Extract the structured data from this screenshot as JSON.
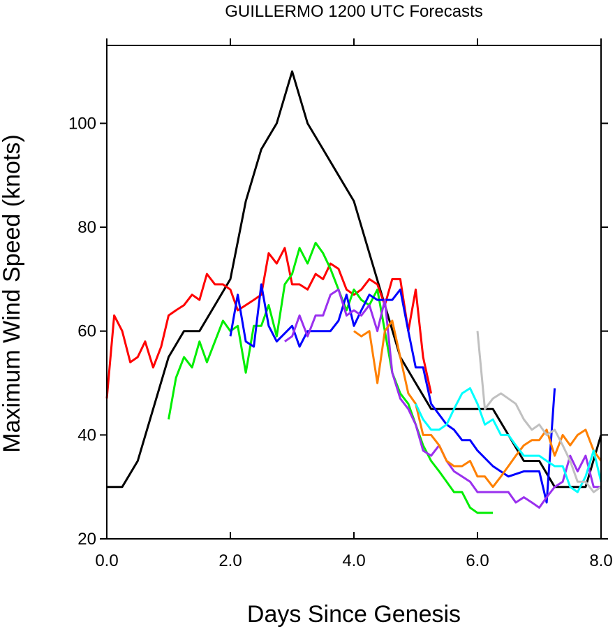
{
  "chart_data": {
    "type": "line",
    "title": "GUILLERMO 1200 UTC Forecasts",
    "xlabel": "Days Since Genesis",
    "ylabel": "Maximum Wind Speed (knots)",
    "xlim": [
      0,
      8
    ],
    "ylim": [
      20,
      115
    ],
    "x_ticks": [
      0,
      2,
      4,
      6,
      8
    ],
    "x_tick_labels": [
      "0.0",
      "2.0",
      "4.0",
      "6.0",
      "8.0"
    ],
    "y_ticks": [
      20,
      40,
      60,
      80,
      100
    ],
    "y_tick_labels": [
      "20",
      "40",
      "60",
      "80",
      "100"
    ],
    "grid": false,
    "series": [
      {
        "color": "#000000",
        "points": [
          [
            0,
            30
          ],
          [
            0.25,
            30
          ],
          [
            0.5,
            35
          ],
          [
            0.75,
            45
          ],
          [
            1.0,
            55
          ],
          [
            1.25,
            60
          ],
          [
            1.5,
            60
          ],
          [
            1.75,
            65
          ],
          [
            2.0,
            70
          ],
          [
            2.25,
            85
          ],
          [
            2.5,
            95
          ],
          [
            2.75,
            100
          ],
          [
            3.0,
            110
          ],
          [
            3.25,
            100
          ],
          [
            3.5,
            95
          ],
          [
            3.75,
            90
          ],
          [
            4.0,
            85
          ],
          [
            4.25,
            75
          ],
          [
            4.5,
            65
          ],
          [
            4.75,
            55
          ],
          [
            5.0,
            50
          ],
          [
            5.25,
            45
          ],
          [
            5.5,
            45
          ],
          [
            5.75,
            45
          ],
          [
            6.0,
            45
          ],
          [
            6.25,
            45
          ],
          [
            6.5,
            40
          ],
          [
            6.75,
            35
          ],
          [
            7.0,
            35
          ],
          [
            7.25,
            30
          ],
          [
            7.5,
            30
          ],
          [
            7.75,
            30
          ],
          [
            8.0,
            40
          ]
        ]
      },
      {
        "color": "#ff0000",
        "points": [
          [
            0,
            47
          ],
          [
            0.12,
            63
          ],
          [
            0.25,
            60
          ],
          [
            0.38,
            54
          ],
          [
            0.5,
            55
          ],
          [
            0.62,
            58
          ],
          [
            0.75,
            53
          ],
          [
            0.88,
            57
          ],
          [
            1.0,
            63
          ],
          [
            1.12,
            64
          ],
          [
            1.25,
            65
          ],
          [
            1.38,
            67
          ],
          [
            1.5,
            66
          ],
          [
            1.62,
            71
          ],
          [
            1.75,
            69
          ],
          [
            1.88,
            69
          ],
          [
            2.0,
            68
          ],
          [
            2.12,
            64
          ],
          [
            2.25,
            65
          ],
          [
            2.38,
            66
          ],
          [
            2.5,
            67
          ],
          [
            2.62,
            75
          ],
          [
            2.75,
            73
          ],
          [
            2.88,
            76
          ],
          [
            3.0,
            69
          ],
          [
            3.12,
            69
          ],
          [
            3.25,
            68
          ],
          [
            3.38,
            71
          ],
          [
            3.5,
            70
          ],
          [
            3.62,
            73
          ],
          [
            3.75,
            72
          ],
          [
            3.88,
            68
          ],
          [
            4.0,
            67
          ],
          [
            4.12,
            68
          ],
          [
            4.25,
            70
          ],
          [
            4.38,
            69
          ],
          [
            4.5,
            65
          ],
          [
            4.62,
            70
          ],
          [
            4.75,
            70
          ],
          [
            4.88,
            60
          ],
          [
            5.0,
            68
          ],
          [
            5.12,
            55
          ],
          [
            5.25,
            48
          ]
        ]
      },
      {
        "color": "#00ee00",
        "points": [
          [
            1.0,
            43
          ],
          [
            1.12,
            51
          ],
          [
            1.25,
            55
          ],
          [
            1.38,
            53
          ],
          [
            1.5,
            58
          ],
          [
            1.62,
            54
          ],
          [
            1.75,
            58
          ],
          [
            1.88,
            62
          ],
          [
            2.0,
            60
          ],
          [
            2.12,
            61
          ],
          [
            2.25,
            52
          ],
          [
            2.38,
            61
          ],
          [
            2.5,
            61
          ],
          [
            2.62,
            65
          ],
          [
            2.75,
            59
          ],
          [
            2.88,
            69
          ],
          [
            3.0,
            71
          ],
          [
            3.12,
            76
          ],
          [
            3.25,
            73
          ],
          [
            3.38,
            77
          ],
          [
            3.5,
            75
          ],
          [
            3.62,
            72
          ],
          [
            3.75,
            68
          ],
          [
            3.88,
            64
          ],
          [
            4.0,
            68
          ],
          [
            4.12,
            66
          ],
          [
            4.25,
            65
          ],
          [
            4.38,
            68
          ],
          [
            4.5,
            60
          ],
          [
            4.62,
            52
          ],
          [
            4.75,
            48
          ],
          [
            4.88,
            46
          ],
          [
            5.0,
            42
          ],
          [
            5.12,
            38
          ],
          [
            5.25,
            35
          ],
          [
            5.38,
            33
          ],
          [
            5.5,
            31
          ],
          [
            5.62,
            29
          ],
          [
            5.75,
            29
          ],
          [
            5.88,
            26
          ],
          [
            6.0,
            25
          ],
          [
            6.12,
            25
          ],
          [
            6.25,
            25
          ]
        ]
      },
      {
        "color": "#0000ff",
        "points": [
          [
            2.0,
            59
          ],
          [
            2.12,
            67
          ],
          [
            2.25,
            58
          ],
          [
            2.38,
            57
          ],
          [
            2.5,
            69
          ],
          [
            2.62,
            61
          ],
          [
            2.75,
            58
          ],
          [
            3.0,
            61
          ],
          [
            3.12,
            57
          ],
          [
            3.25,
            60
          ],
          [
            3.5,
            60
          ],
          [
            3.62,
            60
          ],
          [
            3.75,
            62
          ],
          [
            3.88,
            67
          ],
          [
            4.0,
            61
          ],
          [
            4.12,
            64
          ],
          [
            4.25,
            67
          ],
          [
            4.38,
            66
          ],
          [
            4.5,
            66
          ],
          [
            4.62,
            66
          ],
          [
            4.75,
            68
          ],
          [
            4.88,
            60
          ],
          [
            5.0,
            53
          ],
          [
            5.12,
            53
          ],
          [
            5.25,
            46
          ],
          [
            5.5,
            42
          ],
          [
            5.62,
            41
          ],
          [
            5.75,
            39
          ],
          [
            5.88,
            39
          ],
          [
            6.0,
            37
          ],
          [
            6.25,
            34
          ],
          [
            6.5,
            32
          ],
          [
            6.75,
            33
          ],
          [
            7.0,
            33
          ],
          [
            7.12,
            27
          ],
          [
            7.25,
            49
          ]
        ]
      },
      {
        "color": "#9a30ee",
        "points": [
          [
            2.88,
            58
          ],
          [
            3.0,
            59
          ],
          [
            3.12,
            63
          ],
          [
            3.25,
            59
          ],
          [
            3.38,
            63
          ],
          [
            3.5,
            63
          ],
          [
            3.62,
            67
          ],
          [
            3.75,
            68
          ],
          [
            3.88,
            63
          ],
          [
            4.0,
            64
          ],
          [
            4.12,
            63
          ],
          [
            4.25,
            65
          ],
          [
            4.38,
            60
          ],
          [
            4.5,
            66
          ],
          [
            4.62,
            52
          ],
          [
            4.75,
            47
          ],
          [
            4.88,
            45
          ],
          [
            5.0,
            42
          ],
          [
            5.12,
            37
          ],
          [
            5.25,
            36
          ],
          [
            5.38,
            38
          ],
          [
            5.5,
            35
          ],
          [
            5.62,
            33
          ],
          [
            5.75,
            32
          ],
          [
            5.88,
            31
          ],
          [
            6.0,
            29
          ],
          [
            6.25,
            29
          ],
          [
            6.5,
            29
          ],
          [
            6.62,
            27
          ],
          [
            6.75,
            28
          ],
          [
            6.88,
            27
          ],
          [
            7.0,
            26
          ],
          [
            7.12,
            28
          ],
          [
            7.25,
            30
          ],
          [
            7.38,
            31
          ],
          [
            7.5,
            36
          ],
          [
            7.62,
            33
          ],
          [
            7.75,
            36
          ],
          [
            7.88,
            30
          ],
          [
            8.0,
            30
          ]
        ]
      },
      {
        "color": "#ff8000",
        "points": [
          [
            4.0,
            60
          ],
          [
            4.12,
            59
          ],
          [
            4.25,
            60
          ],
          [
            4.38,
            50
          ],
          [
            4.5,
            60
          ],
          [
            4.62,
            62
          ],
          [
            4.75,
            55
          ],
          [
            4.88,
            48
          ],
          [
            5.0,
            46
          ],
          [
            5.12,
            40
          ],
          [
            5.25,
            40
          ],
          [
            5.38,
            38
          ],
          [
            5.5,
            35
          ],
          [
            5.62,
            34
          ],
          [
            5.75,
            34
          ],
          [
            5.88,
            35
          ],
          [
            6.0,
            32
          ],
          [
            6.12,
            32
          ],
          [
            6.25,
            30
          ],
          [
            6.38,
            32
          ],
          [
            6.5,
            34
          ],
          [
            6.62,
            36
          ],
          [
            6.75,
            38
          ],
          [
            6.88,
            39
          ],
          [
            7.0,
            39
          ],
          [
            7.12,
            41
          ],
          [
            7.25,
            36
          ],
          [
            7.38,
            40
          ],
          [
            7.5,
            38
          ],
          [
            7.62,
            40
          ],
          [
            7.75,
            41
          ],
          [
            7.88,
            37
          ],
          [
            8.0,
            35
          ]
        ]
      },
      {
        "color": "#00ffff",
        "points": [
          [
            5.0,
            46
          ],
          [
            5.12,
            43
          ],
          [
            5.25,
            41
          ],
          [
            5.38,
            41
          ],
          [
            5.5,
            42
          ],
          [
            5.62,
            45
          ],
          [
            5.75,
            48
          ],
          [
            5.88,
            49
          ],
          [
            6.0,
            46
          ],
          [
            6.12,
            42
          ],
          [
            6.25,
            43
          ],
          [
            6.38,
            40
          ],
          [
            6.5,
            40
          ],
          [
            6.62,
            38
          ],
          [
            6.75,
            36
          ],
          [
            6.88,
            36
          ],
          [
            7.0,
            36
          ],
          [
            7.12,
            35
          ],
          [
            7.25,
            34
          ],
          [
            7.38,
            34
          ],
          [
            7.5,
            30
          ],
          [
            7.62,
            29
          ],
          [
            7.75,
            32
          ],
          [
            7.88,
            37
          ],
          [
            8.0,
            31
          ]
        ]
      },
      {
        "color": "#c0c0c0",
        "points": [
          [
            6.0,
            60
          ],
          [
            6.12,
            45
          ],
          [
            6.25,
            47
          ],
          [
            6.38,
            48
          ],
          [
            6.5,
            47
          ],
          [
            6.62,
            46
          ],
          [
            6.75,
            43
          ],
          [
            6.88,
            41
          ],
          [
            7.0,
            42
          ],
          [
            7.12,
            40
          ],
          [
            7.25,
            41
          ],
          [
            7.38,
            38
          ],
          [
            7.5,
            35
          ],
          [
            7.62,
            31
          ],
          [
            7.75,
            31
          ],
          [
            7.88,
            29
          ],
          [
            8.0,
            30
          ]
        ]
      }
    ]
  }
}
